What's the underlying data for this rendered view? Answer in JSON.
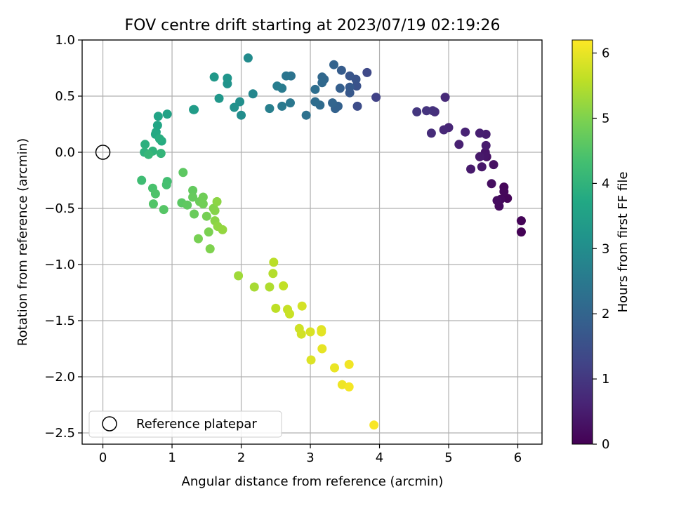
{
  "chart_data": {
    "type": "scatter",
    "title": "FOV centre drift starting at 2023/07/19 02:19:26",
    "xlabel": "Angular distance from reference (arcmin)",
    "ylabel": "Rotation from reference (arcmin)",
    "xlim": [
      -0.3,
      6.35
    ],
    "ylim": [
      -2.6,
      1.0
    ],
    "xticks": [
      0,
      1,
      2,
      3,
      4,
      5,
      6
    ],
    "yticks": [
      -2.5,
      -2.0,
      -1.5,
      -1.0,
      -0.5,
      0.0,
      0.5,
      1.0
    ],
    "xtick_labels": [
      "0",
      "1",
      "2",
      "3",
      "4",
      "5",
      "6"
    ],
    "ytick_labels": [
      "−2.5",
      "−2.0",
      "−1.5",
      "−1.0",
      "−0.5",
      "0.0",
      "0.5",
      "1.0"
    ],
    "grid": true,
    "legend": {
      "position": "lower-left",
      "label": "Reference platepar"
    },
    "reference_point": {
      "x": 0,
      "y": 0
    },
    "colorbar": {
      "label": "Hours from first FF file",
      "colormap": "viridis",
      "range": [
        0,
        6.2
      ],
      "ticks": [
        0,
        1,
        2,
        3,
        4,
        5,
        6
      ],
      "tick_labels": [
        "0",
        "1",
        "2",
        "3",
        "4",
        "5",
        "6"
      ]
    },
    "series": [
      {
        "note_hours_color_encoding": true,
        "points": [
          [
            6.05,
            -0.71,
            0.02
          ],
          [
            6.05,
            -0.61,
            0.05
          ],
          [
            5.85,
            -0.41,
            0.08
          ],
          [
            5.8,
            -0.31,
            0.1
          ],
          [
            5.8,
            -0.35,
            0.12
          ],
          [
            5.75,
            -0.42,
            0.15
          ],
          [
            5.73,
            -0.48,
            0.18
          ],
          [
            5.7,
            -0.43,
            0.2
          ],
          [
            5.62,
            -0.28,
            0.23
          ],
          [
            5.65,
            -0.11,
            0.26
          ],
          [
            5.55,
            -0.04,
            0.29
          ],
          [
            5.53,
            -0.02,
            0.31
          ],
          [
            5.53,
            0.0,
            0.34
          ],
          [
            5.52,
            -0.03,
            0.36
          ],
          [
            5.48,
            -0.13,
            0.39
          ],
          [
            5.45,
            -0.04,
            0.42
          ],
          [
            5.32,
            -0.15,
            0.45
          ],
          [
            5.54,
            0.06,
            0.48
          ],
          [
            5.54,
            0.16,
            0.51
          ],
          [
            5.45,
            0.17,
            0.54
          ],
          [
            5.15,
            0.07,
            0.57
          ],
          [
            5.24,
            0.18,
            0.61
          ],
          [
            5.0,
            0.22,
            0.65
          ],
          [
            4.93,
            0.2,
            0.69
          ],
          [
            4.95,
            0.49,
            0.73
          ],
          [
            4.75,
            0.17,
            0.77
          ],
          [
            4.8,
            0.36,
            0.82
          ],
          [
            4.77,
            0.37,
            0.87
          ],
          [
            4.68,
            0.37,
            0.93
          ],
          [
            4.54,
            0.36,
            0.98
          ],
          [
            3.95,
            0.49,
            1.2
          ],
          [
            3.82,
            0.71,
            1.35
          ],
          [
            3.68,
            0.41,
            1.45
          ],
          [
            3.67,
            0.59,
            1.55
          ],
          [
            3.66,
            0.65,
            1.6
          ],
          [
            3.57,
            0.68,
            1.65
          ],
          [
            3.57,
            0.53,
            1.7
          ],
          [
            3.57,
            0.58,
            1.75
          ],
          [
            3.45,
            0.73,
            1.8
          ],
          [
            3.43,
            0.57,
            1.85
          ],
          [
            3.4,
            0.41,
            1.9
          ],
          [
            3.36,
            0.39,
            1.93
          ],
          [
            3.34,
            0.78,
            1.97
          ],
          [
            3.32,
            0.44,
            2.0
          ],
          [
            3.2,
            0.65,
            2.05
          ],
          [
            3.17,
            0.67,
            2.08
          ],
          [
            3.17,
            0.62,
            2.12
          ],
          [
            3.14,
            0.42,
            2.16
          ],
          [
            3.07,
            0.45,
            2.2
          ],
          [
            3.07,
            0.56,
            2.24
          ],
          [
            2.94,
            0.33,
            2.3
          ],
          [
            2.72,
            0.68,
            2.35
          ],
          [
            2.65,
            0.68,
            2.4
          ],
          [
            2.71,
            0.44,
            2.45
          ],
          [
            2.59,
            0.41,
            2.5
          ],
          [
            2.59,
            0.57,
            2.55
          ],
          [
            2.52,
            0.59,
            2.6
          ],
          [
            2.41,
            0.39,
            2.65
          ],
          [
            2.17,
            0.52,
            2.85
          ],
          [
            2.1,
            0.84,
            2.95
          ],
          [
            2.0,
            0.33,
            3.0
          ],
          [
            1.98,
            0.45,
            3.05
          ],
          [
            1.9,
            0.4,
            3.1
          ],
          [
            1.8,
            0.61,
            3.15
          ],
          [
            1.8,
            0.66,
            3.2
          ],
          [
            1.68,
            0.48,
            3.25
          ],
          [
            1.61,
            0.67,
            3.3
          ],
          [
            1.32,
            0.38,
            3.35
          ],
          [
            1.31,
            0.38,
            3.4
          ],
          [
            0.93,
            0.34,
            3.55
          ],
          [
            0.8,
            0.32,
            3.6
          ],
          [
            0.79,
            0.24,
            3.65
          ],
          [
            0.77,
            0.18,
            3.7
          ],
          [
            0.76,
            0.16,
            3.75
          ],
          [
            0.85,
            0.1,
            3.8
          ],
          [
            0.82,
            0.12,
            3.85
          ],
          [
            0.61,
            0.07,
            3.9
          ],
          [
            0.6,
            0.0,
            3.95
          ],
          [
            0.72,
            0.01,
            4.0
          ],
          [
            0.84,
            -0.01,
            4.05
          ],
          [
            0.66,
            -0.02,
            4.1
          ],
          [
            0.56,
            -0.25,
            4.25
          ],
          [
            0.93,
            -0.26,
            4.3
          ],
          [
            0.92,
            -0.29,
            4.35
          ],
          [
            0.72,
            -0.32,
            4.4
          ],
          [
            0.76,
            -0.37,
            4.45
          ],
          [
            0.73,
            -0.46,
            4.5
          ],
          [
            0.88,
            -0.51,
            4.55
          ],
          [
            1.14,
            -0.45,
            4.6
          ],
          [
            1.16,
            -0.18,
            4.63
          ],
          [
            1.22,
            -0.47,
            4.66
          ],
          [
            1.3,
            -0.34,
            4.7
          ],
          [
            1.3,
            -0.4,
            4.73
          ],
          [
            1.32,
            -0.55,
            4.76
          ],
          [
            1.4,
            -0.44,
            4.8
          ],
          [
            1.45,
            -0.4,
            4.83
          ],
          [
            1.45,
            -0.46,
            4.86
          ],
          [
            1.5,
            -0.57,
            4.9
          ],
          [
            1.38,
            -0.77,
            4.93
          ],
          [
            1.53,
            -0.71,
            4.96
          ],
          [
            1.55,
            -0.86,
            5.0
          ],
          [
            1.6,
            -0.5,
            5.03
          ],
          [
            1.62,
            -0.52,
            5.06
          ],
          [
            1.62,
            -0.61,
            5.1
          ],
          [
            1.65,
            -0.44,
            5.13
          ],
          [
            1.66,
            -0.66,
            5.16
          ],
          [
            1.73,
            -0.69,
            5.2
          ],
          [
            1.96,
            -1.1,
            5.3
          ],
          [
            2.19,
            -1.2,
            5.38
          ],
          [
            2.41,
            -1.2,
            5.45
          ],
          [
            2.46,
            -1.08,
            5.5
          ],
          [
            2.47,
            -0.98,
            5.55
          ],
          [
            2.5,
            -1.39,
            5.58
          ],
          [
            2.61,
            -1.19,
            5.62
          ],
          [
            2.67,
            -1.4,
            5.66
          ],
          [
            2.7,
            -1.44,
            5.7
          ],
          [
            2.84,
            -1.57,
            5.74
          ],
          [
            2.87,
            -1.62,
            5.77
          ],
          [
            2.88,
            -1.37,
            5.8
          ],
          [
            3.0,
            -1.6,
            5.84
          ],
          [
            3.01,
            -1.85,
            5.88
          ],
          [
            3.16,
            -1.58,
            5.92
          ],
          [
            3.16,
            -1.6,
            5.95
          ],
          [
            3.17,
            -1.75,
            5.98
          ],
          [
            3.35,
            -1.92,
            6.02
          ],
          [
            3.46,
            -2.07,
            6.05
          ],
          [
            3.56,
            -1.89,
            6.08
          ],
          [
            3.56,
            -2.09,
            6.11
          ],
          [
            3.92,
            -2.43,
            6.15
          ]
        ]
      }
    ]
  }
}
